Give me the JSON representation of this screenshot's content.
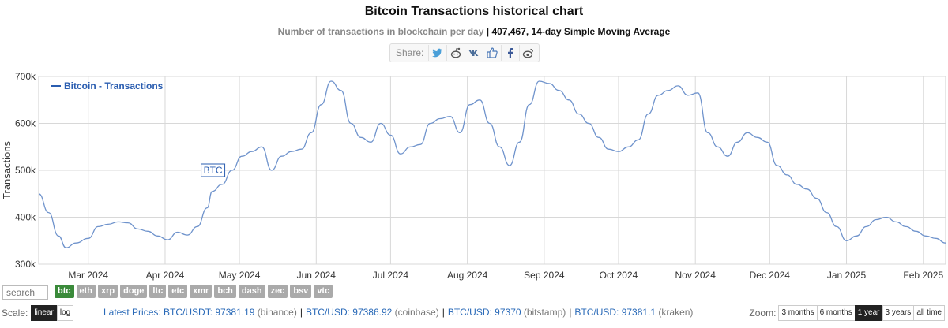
{
  "header": {
    "title": "Bitcoin Transactions historical chart",
    "subtitle_main": "Number of transactions in blockchain per day",
    "subtitle_sep": "|",
    "subtitle_value": "407,467, 14-day Simple Moving Average"
  },
  "share": {
    "label": "Share:",
    "buttons": [
      {
        "icon": "twitter-icon"
      },
      {
        "icon": "reddit-icon"
      },
      {
        "icon": "vk-icon"
      },
      {
        "icon": "like-icon"
      },
      {
        "icon": "facebook-icon"
      },
      {
        "icon": "weibo-icon"
      }
    ]
  },
  "search": {
    "placeholder": "search"
  },
  "coins": [
    "btc",
    "eth",
    "xrp",
    "doge",
    "ltc",
    "etc",
    "xmr",
    "bch",
    "dash",
    "zec",
    "bsv",
    "vtc"
  ],
  "active_coin": "btc",
  "scale": {
    "label": "Scale:",
    "options": [
      "linear",
      "log"
    ],
    "active": "linear"
  },
  "prices": {
    "label": "Latest Prices:",
    "items": [
      {
        "pair": "BTC/USDT: 97381.19",
        "exchange": "(binance)"
      },
      {
        "pair": "BTC/USD: 97386.92",
        "exchange": "(coinbase)"
      },
      {
        "pair": "BTC/USD: 97370",
        "exchange": "(bitstamp)"
      },
      {
        "pair": "BTC/USD: 97381.1",
        "exchange": "(kraken)"
      }
    ]
  },
  "zoom": {
    "label": "Zoom:",
    "options": [
      "3 months",
      "6 months",
      "1 year",
      "3 years",
      "all time"
    ],
    "active": "1 year"
  },
  "colors": {
    "line": "#6f93cc",
    "legend": "#2a5db0",
    "grid": "#d8d8d8",
    "active_coin": "#3a8a3a"
  },
  "chart_data": {
    "type": "line",
    "title": "Bitcoin Transactions historical chart",
    "ylabel": "Transactions",
    "ylim": [
      300000,
      700000
    ],
    "yticks": [
      300000,
      400000,
      500000,
      600000,
      700000
    ],
    "ytick_labels": [
      "300k",
      "400k",
      "500k",
      "600k",
      "700k"
    ],
    "xlim": [
      "2024-02-10",
      "2025-02-10"
    ],
    "xticks": [
      "2024-03-01",
      "2024-04-01",
      "2024-05-01",
      "2024-06-01",
      "2024-07-01",
      "2024-08-01",
      "2024-09-01",
      "2024-10-01",
      "2024-11-01",
      "2024-12-01",
      "2025-01-01",
      "2025-02-01"
    ],
    "xtick_labels": [
      "Mar 2024",
      "Apr 2024",
      "May 2024",
      "Jun 2024",
      "Jul 2024",
      "Aug 2024",
      "Sep 2024",
      "Oct 2024",
      "Nov 2024",
      "Dec 2024",
      "Jan 2025",
      "Feb 2025"
    ],
    "grid": true,
    "legend": "top-left",
    "annotation": {
      "text": "BTC",
      "x": "2024-04-20",
      "y": 500000
    },
    "series": [
      {
        "name": "Bitcoin - Transactions",
        "x": [
          "2024-02-10",
          "2024-02-14",
          "2024-02-18",
          "2024-02-21",
          "2024-02-25",
          "2024-03-01",
          "2024-03-05",
          "2024-03-09",
          "2024-03-13",
          "2024-03-17",
          "2024-03-21",
          "2024-03-25",
          "2024-03-29",
          "2024-04-02",
          "2024-04-06",
          "2024-04-10",
          "2024-04-14",
          "2024-04-18",
          "2024-04-20",
          "2024-04-24",
          "2024-04-28",
          "2024-05-02",
          "2024-05-06",
          "2024-05-10",
          "2024-05-14",
          "2024-05-18",
          "2024-05-22",
          "2024-05-26",
          "2024-05-30",
          "2024-06-03",
          "2024-06-07",
          "2024-06-11",
          "2024-06-15",
          "2024-06-19",
          "2024-06-23",
          "2024-06-27",
          "2024-07-01",
          "2024-07-05",
          "2024-07-09",
          "2024-07-13",
          "2024-07-17",
          "2024-07-21",
          "2024-07-25",
          "2024-07-29",
          "2024-08-02",
          "2024-08-06",
          "2024-08-10",
          "2024-08-14",
          "2024-08-18",
          "2024-08-22",
          "2024-08-26",
          "2024-08-30",
          "2024-09-03",
          "2024-09-07",
          "2024-09-11",
          "2024-09-15",
          "2024-09-19",
          "2024-09-23",
          "2024-09-27",
          "2024-10-01",
          "2024-10-05",
          "2024-10-09",
          "2024-10-13",
          "2024-10-17",
          "2024-10-21",
          "2024-10-25",
          "2024-10-29",
          "2024-11-02",
          "2024-11-06",
          "2024-11-10",
          "2024-11-14",
          "2024-11-18",
          "2024-11-22",
          "2024-11-26",
          "2024-11-30",
          "2024-12-04",
          "2024-12-08",
          "2024-12-12",
          "2024-12-16",
          "2024-12-20",
          "2024-12-24",
          "2024-12-28",
          "2025-01-01",
          "2025-01-05",
          "2025-01-09",
          "2025-01-13",
          "2025-01-17",
          "2025-01-21",
          "2025-01-25",
          "2025-01-29",
          "2025-02-02",
          "2025-02-06",
          "2025-02-10"
        ],
        "values": [
          450000,
          410000,
          360000,
          335000,
          345000,
          355000,
          380000,
          385000,
          390000,
          388000,
          375000,
          370000,
          360000,
          352000,
          368000,
          362000,
          380000,
          420000,
          455000,
          470000,
          500000,
          530000,
          540000,
          550000,
          500000,
          530000,
          540000,
          545000,
          580000,
          640000,
          690000,
          670000,
          600000,
          570000,
          560000,
          600000,
          575000,
          535000,
          550000,
          555000,
          600000,
          610000,
          615000,
          580000,
          640000,
          650000,
          600000,
          550000,
          510000,
          560000,
          640000,
          690000,
          685000,
          670000,
          650000,
          620000,
          600000,
          570000,
          545000,
          540000,
          550000,
          565000,
          620000,
          660000,
          670000,
          680000,
          660000,
          665000,
          580000,
          550000,
          530000,
          560000,
          580000,
          570000,
          560000,
          510000,
          490000,
          470000,
          460000,
          440000,
          410000,
          380000,
          350000,
          360000,
          380000,
          395000,
          400000,
          390000,
          380000,
          370000,
          360000,
          355000,
          345000
        ]
      }
    ]
  }
}
